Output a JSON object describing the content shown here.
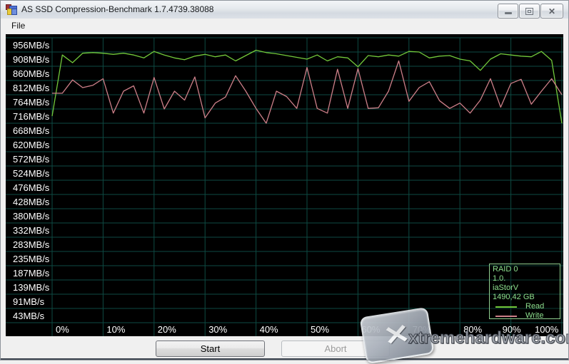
{
  "window": {
    "title": "AS SSD Compression-Benchmark 1.7.4739.38088",
    "controls": {
      "minimize": "minimize",
      "maximize": "maximize",
      "close": "close"
    }
  },
  "menu": {
    "file_label": "File"
  },
  "chart_data": {
    "type": "line",
    "title": "",
    "xlabel": "",
    "ylabel": "",
    "background": "#000000",
    "grid": true,
    "grid_color": "#0e4a43",
    "axis_text_color": "#ffffff",
    "x_step_pct": 2,
    "x_ticks": [
      "0%",
      "10%",
      "20%",
      "30%",
      "40%",
      "50%",
      "60%",
      "70%",
      "80%",
      "90%",
      "100%"
    ],
    "y_ticks": [
      "956MB/s",
      "908MB/s",
      "860MB/s",
      "812MB/s",
      "764MB/s",
      "716MB/s",
      "668MB/s",
      "620MB/s",
      "572MB/s",
      "524MB/s",
      "476MB/s",
      "428MB/s",
      "380MB/s",
      "332MB/s",
      "283MB/s",
      "235MB/s",
      "187MB/s",
      "139MB/s",
      "91MB/s",
      "43MB/s"
    ],
    "y_tick_values": [
      956,
      908,
      860,
      812,
      764,
      716,
      668,
      620,
      572,
      524,
      476,
      428,
      380,
      332,
      283,
      235,
      187,
      139,
      91,
      43
    ],
    "series": [
      {
        "name": "Read",
        "color": "#72c93b",
        "values": [
          716,
          922,
          896,
          928,
          930,
          928,
          924,
          928,
          922,
          912,
          934,
          922,
          912,
          906,
          918,
          924,
          916,
          922,
          902,
          920,
          938,
          930,
          926,
          920,
          914,
          908,
          922,
          902,
          916,
          912,
          882,
          920,
          916,
          922,
          918,
          934,
          932,
          912,
          918,
          920,
          908,
          902,
          870,
          908,
          926,
          922,
          918,
          916,
          934,
          904,
          692
        ]
      },
      {
        "name": "Write",
        "color": "#cc7f88",
        "values": [
          793,
          793,
          838,
          812,
          820,
          842,
          726,
          800,
          818,
          726,
          846,
          740,
          800,
          770,
          848,
          710,
          760,
          780,
          852,
          800,
          742,
          692,
          800,
          782,
          742,
          880,
          742,
          726,
          874,
          742,
          876,
          742,
          744,
          800,
          902,
          766,
          812,
          832,
          768,
          742,
          760,
          726,
          770,
          842,
          746,
          826,
          840,
          756,
          800,
          842,
          788
        ]
      }
    ],
    "legend": {
      "position": "bottom-right",
      "device": [
        "RAID 0",
        "1.0.",
        "iaStorV",
        "1490,42 GB"
      ],
      "entries": [
        {
          "label": "Read",
          "color": "#72c93b"
        },
        {
          "label": "Write",
          "color": "#cc7f88"
        }
      ],
      "text_color": "#8ee08e",
      "border_color": "#8fcf8f"
    }
  },
  "buttons": {
    "start": "Start",
    "abort": "Abort"
  },
  "watermark": {
    "text": "xtremehardware.com",
    "logo": "x-logo"
  }
}
